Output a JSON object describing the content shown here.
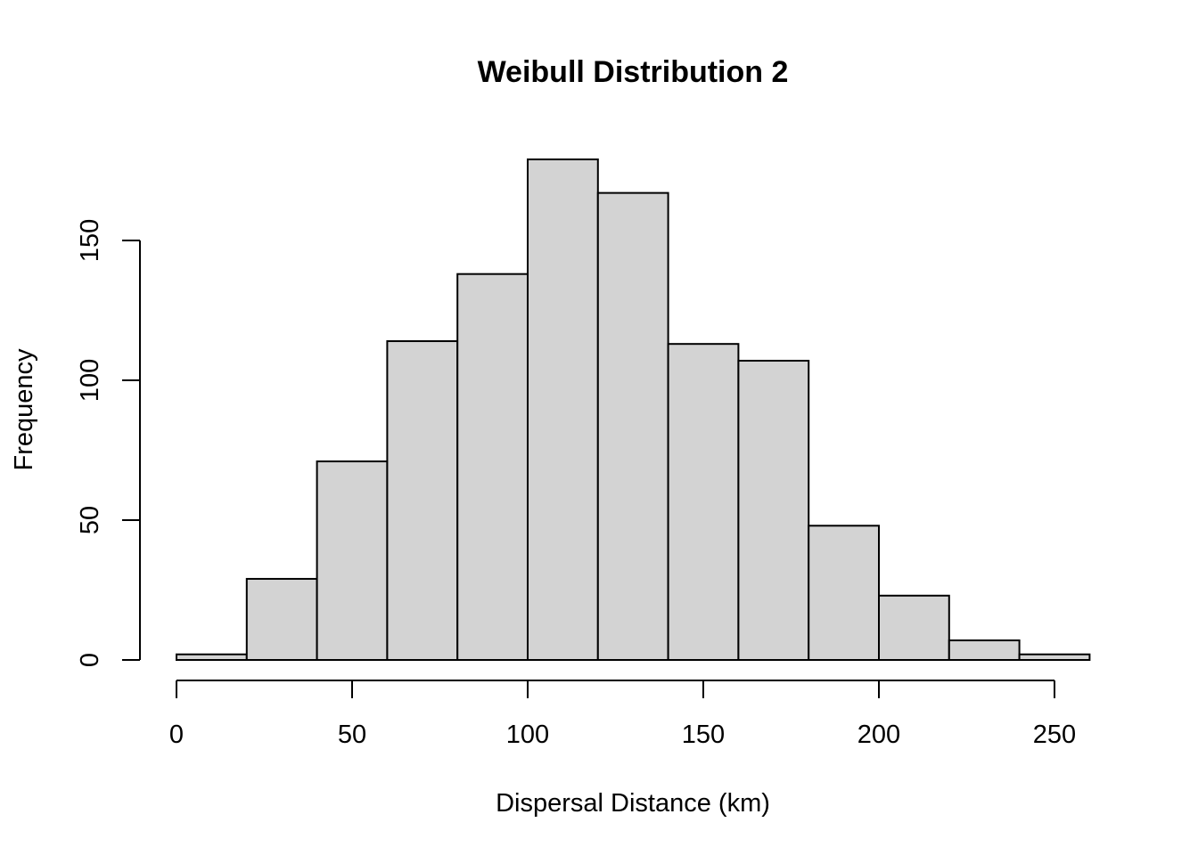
{
  "chart_data": {
    "type": "bar",
    "subtype": "histogram",
    "title": "Weibull Distribution 2",
    "xlabel": "Dispersal Distance (km)",
    "ylabel": "Frequency",
    "bin_edges": [
      0,
      20,
      40,
      60,
      80,
      100,
      120,
      140,
      160,
      180,
      200,
      220,
      240,
      260
    ],
    "values": [
      2,
      29,
      71,
      114,
      138,
      179,
      167,
      113,
      107,
      48,
      23,
      7,
      2
    ],
    "xlim": [
      0,
      260
    ],
    "ylim": [
      0,
      180
    ],
    "x_ticks": [
      0,
      50,
      100,
      150,
      200,
      250
    ],
    "y_ticks": [
      0,
      50,
      100,
      150
    ],
    "bar_fill": "#d3d3d3",
    "bar_stroke": "#000000",
    "grid": false,
    "legend": "none"
  }
}
